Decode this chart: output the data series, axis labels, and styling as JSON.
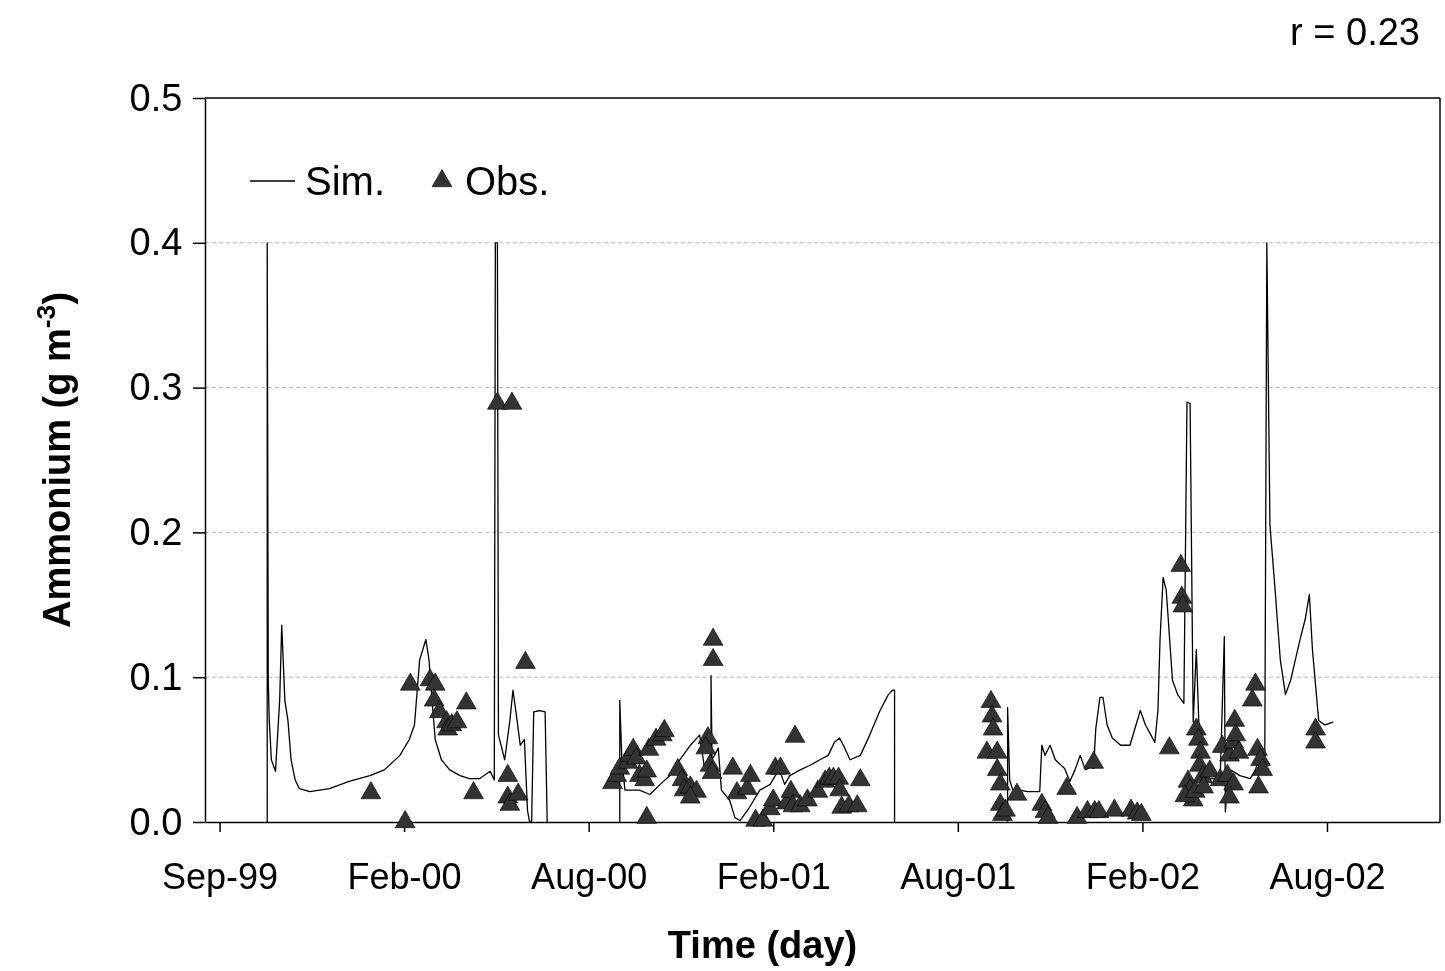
{
  "chart_data": {
    "type": "line",
    "xlabel": "Time (day)",
    "ylabel": "Ammonium (g m$^{-3}$)",
    "annotations": [
      "r = 0.23"
    ],
    "xlim": [
      "1999-08-18",
      "2002-11-21"
    ],
    "ylim": [
      0,
      0.5
    ],
    "xticks": [
      {
        "value": "1999-09-01",
        "label": "Sep-99"
      },
      {
        "value": "2000-02-26",
        "label": "Feb-00"
      },
      {
        "value": "2000-08-22",
        "label": "Aug-00"
      },
      {
        "value": "2001-02-16",
        "label": "Feb-01"
      },
      {
        "value": "2001-08-13",
        "label": "Aug-01"
      },
      {
        "value": "2002-02-07",
        "label": "Feb-02"
      },
      {
        "value": "2002-08-04",
        "label": "Aug-02"
      }
    ],
    "yticks": [
      {
        "value": 0,
        "label": "0.0"
      },
      0.1,
      0.2,
      0.3,
      0.4,
      0.5
    ],
    "grid": "y",
    "legend": "top left",
    "series": [
      {
        "name": "Sim.",
        "color": "#000000",
        "line_style": "solid",
        "x": [
          "1999-10-17",
          "1999-10-17",
          "1999-10-18",
          "1999-10-19",
          "1999-10-21",
          "1999-10-25",
          "1999-10-29",
          "1999-10-31",
          "1999-11-03",
          "1999-11-06",
          "1999-11-09",
          "1999-11-13",
          "1999-11-17",
          "1999-11-27",
          "1999-12-16",
          "2000-01-04",
          "2000-01-24",
          "2000-02-07",
          "2000-02-22",
          "2000-03-02",
          "2000-03-07",
          "2000-03-12",
          "2000-03-15",
          "2000-03-18",
          "2000-03-21",
          "2000-03-24",
          "2000-03-27",
          "2000-04-02",
          "2000-04-10",
          "2000-04-20",
          "2000-04-29",
          "2000-05-09",
          "2000-05-19",
          "2000-05-23",
          "2000-05-24",
          "2000-05-26",
          "2000-05-27",
          "2000-06-02",
          "2000-06-07",
          "2000-06-10",
          "2000-06-14",
          "2000-06-17",
          "2000-06-21",
          "2000-06-24",
          "2000-06-26",
          "2000-06-28",
          "2000-06-30",
          "2000-07-06",
          "2000-07-11",
          "2000-07-13",
          "2000-08-06",
          "2000-09-21",
          "2000-09-21",
          "2000-09-23",
          "2000-09-26",
          "2000-10-01",
          "2000-10-10",
          "2000-10-20",
          "2000-10-30",
          "2000-11-08",
          "2000-11-18",
          "2000-11-28",
          "2000-12-07",
          "2000-12-12",
          "2000-12-18",
          "2000-12-18",
          "2000-12-19",
          "2000-12-25",
          "2000-12-28",
          "2001-01-05",
          "2001-01-10",
          "2001-01-15",
          "2001-01-24",
          "2001-02-03",
          "2001-02-13",
          "2001-02-18",
          "2001-02-22",
          "2001-02-27",
          "2001-03-04",
          "2001-03-14",
          "2001-03-23",
          "2001-04-02",
          "2001-04-10",
          "2001-04-16",
          "2001-04-21",
          "2001-04-26",
          "2001-05-01",
          "2001-05-11",
          "2001-05-20",
          "2001-05-30",
          "2001-06-07",
          "2001-06-11",
          "2001-06-13",
          "2001-06-13",
          "2001-08-21",
          "2001-09-30",
          "2001-09-30",
          "2001-10-02",
          "2001-10-05",
          "2001-10-12",
          "2001-10-19",
          "2001-10-31",
          "2001-11-02",
          "2001-11-05",
          "2001-11-10",
          "2001-11-15",
          "2001-11-24",
          "2001-11-29",
          "2001-12-04",
          "2001-12-09",
          "2001-12-14",
          "2001-12-19",
          "2001-12-22",
          "2001-12-24",
          "2001-12-28",
          "2001-12-31",
          "2002-01-04",
          "2002-01-09",
          "2002-01-17",
          "2002-01-26",
          "2002-02-05",
          "2002-02-10",
          "2002-02-19",
          "2002-02-22",
          "2002-02-24",
          "2002-02-27",
          "2002-03-02",
          "2002-03-08",
          "2002-03-13",
          "2002-03-19",
          "2002-03-22",
          "2002-03-25",
          "2002-03-28",
          "2002-03-31",
          "2002-04-04",
          "2002-04-13",
          "2002-04-23",
          "2002-04-27",
          "2002-04-28",
          "2002-05-01",
          "2002-05-12",
          "2002-05-22",
          "2002-05-27",
          "2002-05-30",
          "2002-06-05",
          "2002-06-07",
          "2002-06-10",
          "2002-06-15",
          "2002-06-20",
          "2002-06-25",
          "2002-06-30",
          "2002-07-09",
          "2002-07-14",
          "2002-07-18",
          "2002-07-21",
          "2002-07-27",
          "2002-08-02",
          "2002-08-10"
        ],
        "values": [
          0,
          0.4,
          0.098,
          0.07,
          0.043,
          0.035,
          0.084,
          0.136,
          0.084,
          0.07,
          0.043,
          0.029,
          0.023,
          0.021,
          0.023,
          0.028,
          0.032,
          0.036,
          0.046,
          0.057,
          0.067,
          0.112,
          0.119,
          0.126,
          0.112,
          0.084,
          0.057,
          0.043,
          0.036,
          0.032,
          0.03,
          0.03,
          0.035,
          0.029,
          0.4,
          0.4,
          0.06,
          0.043,
          0.07,
          0.091,
          0.07,
          0.053,
          0.057,
          0.008,
          0,
          0,
          0.076,
          0.077,
          0.076,
          0,
          null,
          0,
          0.084,
          0.043,
          0.022,
          0.022,
          0.022,
          0.019,
          0.026,
          0.032,
          0.043,
          0.053,
          0.06,
          0.036,
          0.043,
          0.101,
          0.043,
          0.051,
          0.022,
          0.015,
          0.003,
          0.001,
          0.01,
          0.022,
          0.026,
          0.032,
          0.036,
          0.026,
          0.032,
          0.036,
          0.039,
          0.043,
          0.046,
          0.055,
          0.058,
          0.051,
          0.043,
          0.046,
          0.06,
          0.077,
          0.088,
          0.091,
          0.091,
          0,
          null,
          0,
          0.079,
          0.029,
          0.022,
          0.022,
          0.021,
          0.021,
          0.053,
          0.046,
          0.053,
          0.043,
          0.037,
          0.028,
          0.036,
          0.046,
          0.036,
          0.038,
          0.037,
          0.064,
          0.086,
          0.086,
          0.067,
          0.058,
          0.053,
          0.053,
          0.077,
          0.067,
          0.055,
          0.077,
          0.126,
          0.169,
          0.16,
          0.098,
          0.088,
          0.082,
          0.29,
          0.289,
          0.069,
          0.119,
          0.036,
          0.03,
          0.03,
          0.128,
          0.007,
          0.037,
          0.032,
          0.03,
          0.036,
          0.043,
          0.039,
          0.4,
          0.205,
          0.16,
          0.112,
          0.088,
          0.098,
          0.126,
          0.14,
          0.157,
          0.119,
          0.07,
          0.067,
          0.069
        ]
      },
      {
        "name": "Obs.",
        "type": "scatter",
        "color": "#333333",
        "marker": "triangle",
        "x": [
          "2000-01-25",
          "2000-02-27",
          "2000-03-03",
          "2000-03-22",
          "2000-03-27",
          "2000-03-26",
          "2000-03-31",
          "2000-04-07",
          "2000-04-08",
          "2000-04-12",
          "2000-04-17",
          "2000-04-26",
          "2000-05-03",
          "2000-05-26",
          "2000-06-09",
          "2000-06-22",
          "2000-06-05",
          "2000-06-05",
          "2000-06-07",
          "2000-06-15",
          "2000-09-14",
          "2000-09-18",
          "2000-09-21",
          "2000-09-29",
          "2000-10-01",
          "2000-10-04",
          "2000-10-07",
          "2000-10-10",
          "2000-10-15",
          "2000-10-17",
          "2000-10-17",
          "2000-10-19",
          "2000-10-26",
          "2000-11-01",
          "2000-11-03",
          "2000-11-16",
          "2000-11-20",
          "2000-11-22",
          "2000-11-28",
          "2000-12-04",
          "2000-11-28",
          "2000-12-15",
          "2000-12-13",
          "2000-12-17",
          "2000-12-19",
          "2000-12-20",
          "2000-12-20",
          "2001-01-08",
          "2001-01-12",
          "2001-01-22",
          "2001-01-25",
          "2001-01-30",
          "2001-02-06",
          "2001-02-13",
          "2001-02-16",
          "2001-02-18",
          "2001-02-23",
          "2001-03-01",
          "2001-03-05",
          "2001-03-09",
          "2001-03-07",
          "2001-03-14",
          "2001-03-21",
          "2001-03-31",
          "2001-04-07",
          "2001-04-11",
          "2001-04-15",
          "2001-04-20",
          "2001-04-21",
          "2001-04-23",
          "2001-04-30",
          "2001-05-08",
          "2001-05-11",
          "2001-09-14",
          "2001-09-15",
          "2001-09-16",
          "2001-09-10",
          "2001-09-20",
          "2001-09-20",
          "2001-09-23",
          "2001-09-23",
          "2001-09-25",
          "2001-09-28",
          "2001-10-09",
          "2001-11-02",
          "2001-11-05",
          "2001-11-08",
          "2001-11-26",
          "2001-12-06",
          "2001-12-16",
          "2001-12-23",
          "2001-12-27",
          "2002-01-11",
          "2001-12-22",
          "2002-01-27",
          "2002-02-02",
          "2002-02-06",
          "2002-03-05",
          "2002-03-16",
          "2002-03-17",
          "2002-03-18",
          "2002-03-31",
          "2002-04-02",
          "2002-04-04",
          "2002-04-03",
          "2002-04-06",
          "2002-03-23",
          "2002-03-25",
          "2002-03-28",
          "2002-03-20",
          "2002-03-30",
          "2002-04-07",
          "2002-04-13",
          "2002-04-23",
          "2002-04-25",
          "2002-04-30",
          "2002-05-02",
          "2002-05-06",
          "2002-05-07",
          "2002-05-08",
          "2002-05-11",
          "2002-05-06",
          "2002-05-02",
          "2002-05-24",
          "2002-05-27",
          "2002-05-29",
          "2002-06-01",
          "2002-06-03",
          "2002-05-30",
          "2002-07-24",
          "2002-07-24"
        ],
        "values": [
          0.02,
          0,
          0.095,
          0.098,
          0.095,
          0.084,
          0.076,
          0.069,
          0.064,
          0.067,
          0.069,
          0.082,
          0.02,
          0.289,
          0.289,
          0.11,
          0.032,
          0.017,
          0.012,
          0.019,
          0.027,
          0.032,
          0.037,
          0.041,
          0.046,
          0.05,
          0.044,
          0.032,
          0.029,
          0.035,
          0.003,
          0.05,
          0.057,
          0.06,
          0.063,
          0.036,
          0.029,
          0.022,
          0.024,
          0.021,
          0.017,
          0.058,
          0.051,
          0.039,
          0.034,
          0.126,
          0.112,
          0.037,
          0.02,
          0.023,
          0.032,
          0.001,
          0.001,
          0.009,
          0.015,
          0.037,
          0.037,
          0.013,
          0.021,
          0.059,
          0.011,
          0.011,
          0.015,
          0.021,
          0.028,
          0.03,
          0.03,
          0.03,
          0.022,
          0.01,
          0.011,
          0.011,
          0.029,
          0.083,
          0.073,
          0.064,
          0.048,
          0.048,
          0.036,
          0.026,
          0.012,
          0.005,
          0.008,
          0.019,
          0.012,
          0.007,
          0.003,
          0.023,
          0.003,
          0.007,
          0.007,
          0.007,
          0.008,
          0.041,
          0.008,
          0.006,
          0.005,
          0.051,
          0.177,
          0.155,
          0.149,
          0.064,
          0.057,
          0.048,
          0.039,
          0.031,
          0.028,
          0.022,
          0.015,
          0.018,
          0.021,
          0.024,
          0.035,
          0.029,
          0.052,
          0.032,
          0.046,
          0.055,
          0.07,
          0.06,
          0.048,
          0.026,
          0.017,
          0.084,
          0.095,
          0.05,
          0.043,
          0.036,
          0.024,
          0.064,
          0.055
        ]
      }
    ]
  }
}
